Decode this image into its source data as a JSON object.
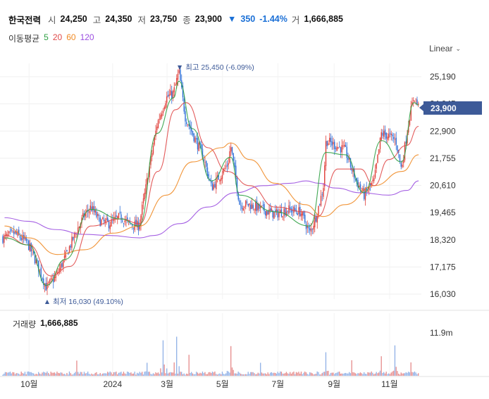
{
  "header": {
    "name": "한국전력",
    "open_label": "시",
    "open": "24,250",
    "high_label": "고",
    "high": "24,350",
    "low_label": "저",
    "low": "23,750",
    "close_label": "종",
    "close": "23,900",
    "change_arrow": "▼",
    "change": "350",
    "change_pct": "-1.44%",
    "volume_label": "거",
    "volume": "1,666,885"
  },
  "moving_average": {
    "label": "이동평균",
    "periods": [
      {
        "value": "5",
        "color": "#2ea043"
      },
      {
        "value": "20",
        "color": "#e04a4a"
      },
      {
        "value": "60",
        "color": "#f08a24"
      },
      {
        "value": "120",
        "color": "#9b4fe0"
      }
    ]
  },
  "scale_mode": "Linear",
  "current_price_tag": "23,900",
  "chart_data": [
    {
      "type": "candlestick",
      "title": "",
      "y_ticks": [
        "25,190",
        "24,045",
        "22,900",
        "21,755",
        "20,610",
        "19,465",
        "18,320",
        "17,175",
        "16,030"
      ],
      "ylim": [
        15600,
        26200
      ],
      "x_ticks": [
        "10월",
        "2024",
        "3월",
        "5월",
        "7월",
        "9월",
        "11월"
      ],
      "grid": true,
      "annotations": {
        "high": {
          "marker": "▼",
          "label": "최고",
          "value": "25,450 (-6.09%)"
        },
        "low": {
          "marker": "▲",
          "label": "최저",
          "value": "16,030 (49.10%)"
        }
      },
      "close_path": [
        [
          "2023-09-04",
          18400
        ],
        [
          "2023-09-15",
          18600
        ],
        [
          "2023-09-29",
          18200
        ],
        [
          "2023-10-10",
          17300
        ],
        [
          "2023-10-20",
          16300
        ],
        [
          "2023-10-31",
          16800
        ],
        [
          "2023-11-10",
          17600
        ],
        [
          "2023-11-20",
          18500
        ],
        [
          "2023-11-30",
          19300
        ],
        [
          "2023-12-08",
          19700
        ],
        [
          "2023-12-18",
          19100
        ],
        [
          "2023-12-28",
          19000
        ],
        [
          "2024-01-10",
          19300
        ],
        [
          "2024-01-19",
          19000
        ],
        [
          "2024-01-30",
          18900
        ],
        [
          "2024-02-08",
          20800
        ],
        [
          "2024-02-19",
          23200
        ],
        [
          "2024-02-29",
          24300
        ],
        [
          "2024-03-08",
          24500
        ],
        [
          "2024-03-14",
          25400
        ],
        [
          "2024-03-21",
          23500
        ],
        [
          "2024-03-29",
          22800
        ],
        [
          "2024-04-10",
          21800
        ],
        [
          "2024-04-19",
          20500
        ],
        [
          "2024-04-26",
          20900
        ],
        [
          "2024-05-07",
          21500
        ],
        [
          "2024-05-10",
          22300
        ],
        [
          "2024-05-20",
          19800
        ],
        [
          "2024-05-31",
          19800
        ],
        [
          "2024-06-14",
          19600
        ],
        [
          "2024-06-28",
          19400
        ],
        [
          "2024-07-12",
          19600
        ],
        [
          "2024-07-26",
          19500
        ],
        [
          "2024-08-05",
          18600
        ],
        [
          "2024-08-12",
          19300
        ],
        [
          "2024-08-20",
          20500
        ],
        [
          "2024-08-23",
          22500
        ],
        [
          "2024-09-02",
          22300
        ],
        [
          "2024-09-13",
          22100
        ],
        [
          "2024-09-24",
          20900
        ],
        [
          "2024-10-04",
          20200
        ],
        [
          "2024-10-15",
          20800
        ],
        [
          "2024-10-23",
          22800
        ],
        [
          "2024-10-31",
          22700
        ],
        [
          "2024-11-08",
          22500
        ],
        [
          "2024-11-14",
          21300
        ],
        [
          "2024-11-22",
          23300
        ],
        [
          "2024-11-28",
          24400
        ],
        [
          "2024-12-03",
          23900
        ]
      ],
      "moving_averages": {
        "ma120": [
          [
            "2023-09-04",
            19250
          ],
          [
            "2023-09-29",
            19100
          ],
          [
            "2023-10-31",
            18750
          ],
          [
            "2023-11-30",
            18550
          ],
          [
            "2023-12-29",
            18500
          ],
          [
            "2024-01-31",
            18400
          ],
          [
            "2024-02-15",
            18500
          ],
          [
            "2024-03-15",
            19000
          ],
          [
            "2024-04-15",
            19700
          ],
          [
            "2024-05-15",
            20300
          ],
          [
            "2024-06-15",
            20600
          ],
          [
            "2024-07-15",
            20700
          ],
          [
            "2024-08-01",
            20800
          ],
          [
            "2024-08-15",
            20700
          ],
          [
            "2024-09-02",
            20500
          ],
          [
            "2024-10-01",
            20300
          ],
          [
            "2024-10-31",
            20200
          ],
          [
            "2024-11-20",
            20400
          ],
          [
            "2024-12-03",
            20800
          ]
        ],
        "ma60": [
          [
            "2023-09-04",
            18900
          ],
          [
            "2023-10-01",
            18400
          ],
          [
            "2023-11-01",
            17700
          ],
          [
            "2023-12-01",
            17900
          ],
          [
            "2024-01-01",
            18600
          ],
          [
            "2024-01-31",
            18900
          ],
          [
            "2024-02-29",
            20200
          ],
          [
            "2024-03-29",
            21600
          ],
          [
            "2024-04-30",
            22200
          ],
          [
            "2024-05-10",
            22400
          ],
          [
            "2024-05-31",
            21700
          ],
          [
            "2024-06-28",
            20700
          ],
          [
            "2024-07-31",
            19800
          ],
          [
            "2024-08-20",
            19300
          ],
          [
            "2024-09-13",
            19800
          ],
          [
            "2024-10-15",
            20600
          ],
          [
            "2024-11-15",
            21200
          ],
          [
            "2024-12-03",
            21900
          ]
        ],
        "ma20": [
          [
            "2023-09-04",
            18500
          ],
          [
            "2023-10-01",
            18100
          ],
          [
            "2023-10-25",
            16800
          ],
          [
            "2023-11-15",
            17200
          ],
          [
            "2023-12-08",
            18900
          ],
          [
            "2024-01-10",
            19200
          ],
          [
            "2024-01-31",
            19000
          ],
          [
            "2024-02-20",
            21200
          ],
          [
            "2024-03-10",
            23800
          ],
          [
            "2024-03-22",
            24100
          ],
          [
            "2024-04-15",
            22200
          ],
          [
            "2024-05-06",
            21200
          ],
          [
            "2024-05-31",
            20600
          ],
          [
            "2024-06-28",
            19700
          ],
          [
            "2024-07-31",
            19500
          ],
          [
            "2024-08-14",
            19300
          ],
          [
            "2024-09-05",
            21300
          ],
          [
            "2024-09-30",
            21300
          ],
          [
            "2024-10-15",
            20600
          ],
          [
            "2024-10-31",
            21700
          ],
          [
            "2024-11-20",
            22300
          ],
          [
            "2024-12-03",
            23100
          ]
        ],
        "ma5": [
          [
            "2023-09-04",
            18400
          ],
          [
            "2023-10-01",
            18100
          ],
          [
            "2023-10-20",
            16400
          ],
          [
            "2023-11-10",
            17500
          ],
          [
            "2023-12-08",
            19600
          ],
          [
            "2024-01-10",
            19200
          ],
          [
            "2024-01-30",
            18900
          ],
          [
            "2024-02-19",
            22800
          ],
          [
            "2024-03-08",
            24300
          ],
          [
            "2024-03-14",
            25000
          ],
          [
            "2024-03-29",
            23000
          ],
          [
            "2024-04-19",
            20800
          ],
          [
            "2024-05-10",
            21800
          ],
          [
            "2024-05-20",
            20200
          ],
          [
            "2024-06-28",
            19500
          ],
          [
            "2024-08-05",
            18900
          ],
          [
            "2024-08-23",
            22000
          ],
          [
            "2024-09-13",
            21900
          ],
          [
            "2024-10-04",
            20300
          ],
          [
            "2024-10-23",
            22500
          ],
          [
            "2024-11-14",
            21600
          ],
          [
            "2024-11-28",
            24100
          ],
          [
            "2024-12-03",
            24000
          ]
        ]
      }
    },
    {
      "type": "bar",
      "title": "거래량",
      "label": "거래량",
      "value": "1,666,885",
      "y_ticks": [
        "11.9m"
      ],
      "ylim": [
        0,
        14000000
      ],
      "volume_spikes": [
        [
          "2023-11-22",
          4200000
        ],
        [
          "2024-02-08",
          3600000
        ],
        [
          "2024-02-26",
          9800000
        ],
        [
          "2024-03-12",
          10800000
        ],
        [
          "2024-03-25",
          5800000
        ],
        [
          "2024-05-10",
          8200000
        ],
        [
          "2024-06-12",
          3600000
        ],
        [
          "2024-08-23",
          6500000
        ],
        [
          "2024-09-20",
          4300000
        ],
        [
          "2024-10-23",
          5400000
        ],
        [
          "2024-11-07",
          8400000
        ],
        [
          "2024-11-25",
          3700000
        ]
      ]
    }
  ]
}
